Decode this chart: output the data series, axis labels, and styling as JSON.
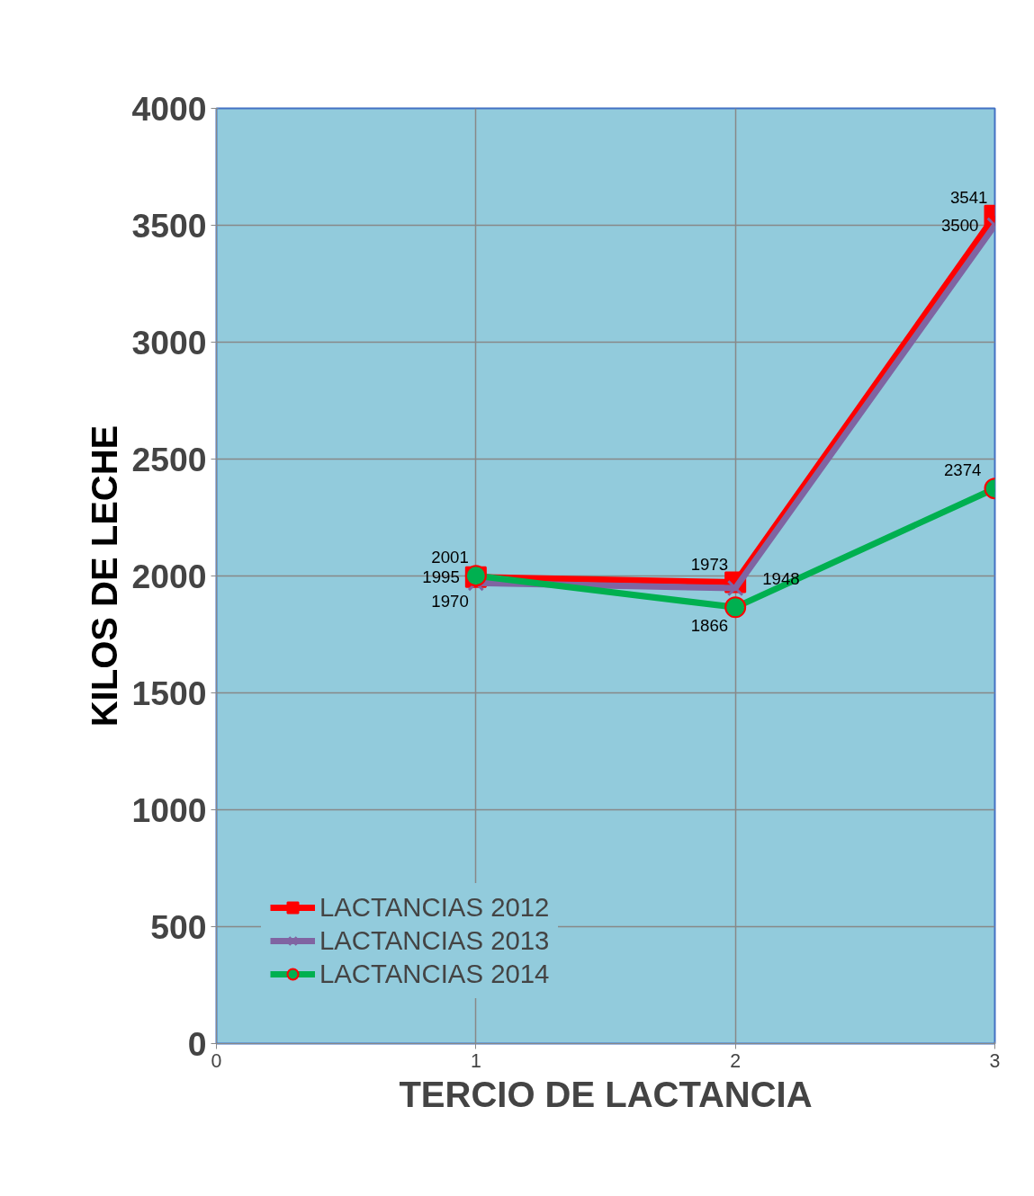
{
  "chart_data": {
    "type": "line",
    "xlabel": "TERCIO DE LACTANCIA",
    "ylabel": "KILOS DE LECHE",
    "x": [
      1,
      2,
      3
    ],
    "xlim": [
      0,
      3
    ],
    "xticks": [
      0,
      1,
      2,
      3
    ],
    "ylim": [
      0,
      4000
    ],
    "yticks": [
      0,
      500,
      1000,
      1500,
      2000,
      2500,
      3000,
      3500,
      4000
    ],
    "grid": true,
    "legend": "bottom left",
    "data_labels": true,
    "series": [
      {
        "name": "LACTANCIAS 2012",
        "color": "#ff0000",
        "marker": "square",
        "values": [
          1995,
          1973,
          3541
        ]
      },
      {
        "name": "LACTANCIAS 2013",
        "color": "#8064a2",
        "marker": "cross",
        "values": [
          1970,
          1948,
          3500
        ]
      },
      {
        "name": "LACTANCIAS 2014",
        "color": "#00b050",
        "marker": "circle",
        "values": [
          2001,
          1866,
          2374
        ]
      }
    ]
  }
}
